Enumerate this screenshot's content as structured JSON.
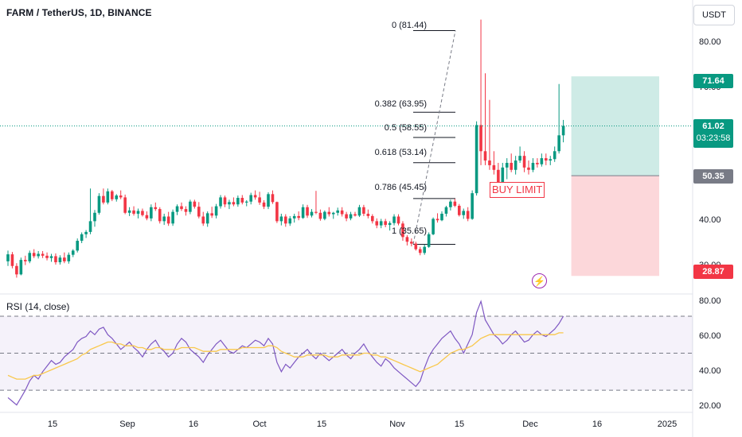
{
  "header": {
    "title": "FARM / TetherUS, 1D, BINANCE",
    "currency": "USDT"
  },
  "trade": {
    "buy_label": "BUY LIMIT",
    "take_profit": "71.64",
    "entry": "50.35",
    "stop": "28.87",
    "last_price": "61.02",
    "countdown": "03:23:58",
    "colors": {
      "profit": "#089981",
      "loss": "#f23645",
      "entry": "#787b86"
    }
  },
  "rsi_panel": {
    "title": "RSI (14, close)"
  },
  "chart_data": [
    {
      "type": "candlestick",
      "y_ticks": [
        "80.00",
        "70.00",
        "40.00",
        "30.00"
      ],
      "ylim": [
        25,
        88
      ],
      "x_ticks": [
        "15",
        "Sep",
        "16",
        "Oct",
        "15",
        "Nov",
        "15",
        "Dec",
        "16",
        "2025"
      ],
      "x_tick_days": [
        14,
        31,
        46,
        61,
        75,
        92,
        106,
        122,
        137,
        153
      ],
      "ohlc": [
        [
          0,
          32.0,
          34.3,
          31.0,
          33.5
        ],
        [
          1,
          33.5,
          34.0,
          30.5,
          31.0
        ],
        [
          2,
          31.0,
          31.6,
          28.5,
          29.2
        ],
        [
          3,
          29.2,
          32.8,
          29.0,
          32.3
        ],
        [
          4,
          32.3,
          33.2,
          31.2,
          32.0
        ],
        [
          5,
          32.0,
          34.3,
          31.6,
          33.8
        ],
        [
          6,
          33.8,
          34.6,
          32.7,
          33.1
        ],
        [
          7,
          33.1,
          34.2,
          32.6,
          33.6
        ],
        [
          8,
          33.6,
          34.2,
          32.7,
          33.2
        ],
        [
          9,
          33.2,
          33.9,
          32.2,
          32.7
        ],
        [
          10,
          32.7,
          33.6,
          31.9,
          33.1
        ],
        [
          11,
          33.1,
          33.7,
          31.3,
          31.8
        ],
        [
          12,
          31.8,
          33.3,
          31.3,
          32.8
        ],
        [
          13,
          32.8,
          33.9,
          31.6,
          32.0
        ],
        [
          14,
          32.0,
          33.9,
          31.5,
          33.4
        ],
        [
          15,
          33.4,
          34.6,
          32.9,
          34.3
        ],
        [
          16,
          34.3,
          36.9,
          33.9,
          36.4
        ],
        [
          17,
          36.4,
          38.2,
          35.9,
          37.8
        ],
        [
          18,
          37.8,
          38.7,
          37.0,
          38.3
        ],
        [
          19,
          38.3,
          47.6,
          37.8,
          40.6
        ],
        [
          20,
          40.6,
          43.0,
          39.4,
          42.4
        ],
        [
          21,
          42.4,
          46.6,
          42.0,
          46.0
        ],
        [
          22,
          46.0,
          47.6,
          44.2,
          44.6
        ],
        [
          23,
          44.6,
          47.6,
          44.2,
          47.0
        ],
        [
          24,
          47.0,
          47.3,
          44.9,
          45.3
        ],
        [
          25,
          45.3,
          46.4,
          44.8,
          46.1
        ],
        [
          26,
          46.1,
          47.2,
          45.3,
          45.7
        ],
        [
          27,
          45.7,
          46.3,
          42.1,
          42.4
        ],
        [
          28,
          42.4,
          43.6,
          41.7,
          42.9
        ],
        [
          29,
          42.9,
          43.8,
          41.8,
          42.2
        ],
        [
          30,
          42.2,
          43.3,
          41.2,
          42.8
        ],
        [
          31,
          42.8,
          43.3,
          41.6,
          41.9
        ],
        [
          32,
          41.9,
          42.7,
          40.8,
          41.2
        ],
        [
          33,
          41.2,
          44.2,
          40.6,
          43.6
        ],
        [
          34,
          43.6,
          44.6,
          42.8,
          43.2
        ],
        [
          35,
          43.2,
          43.6,
          40.1,
          40.6
        ],
        [
          36,
          40.6,
          42.2,
          39.8,
          41.6
        ],
        [
          37,
          41.6,
          42.6,
          39.6,
          40.1
        ],
        [
          38,
          40.1,
          43.1,
          39.6,
          42.6
        ],
        [
          39,
          42.6,
          44.2,
          41.9,
          43.8
        ],
        [
          40,
          43.8,
          44.6,
          42.8,
          43.2
        ],
        [
          41,
          43.2,
          43.8,
          41.8,
          42.6
        ],
        [
          42,
          42.6,
          45.2,
          42.1,
          44.8
        ],
        [
          43,
          44.8,
          45.2,
          43.3,
          43.7
        ],
        [
          44,
          43.7,
          44.7,
          41.2,
          41.6
        ],
        [
          45,
          41.6,
          42.6,
          39.6,
          40.1
        ],
        [
          46,
          40.1,
          42.7,
          39.4,
          42.3
        ],
        [
          47,
          42.3,
          43.7,
          41.3,
          41.8
        ],
        [
          48,
          41.8,
          44.3,
          41.2,
          43.8
        ],
        [
          49,
          43.8,
          46.2,
          43.3,
          45.7
        ],
        [
          50,
          45.7,
          46.1,
          43.6,
          44.2
        ],
        [
          51,
          44.2,
          45.2,
          43.2,
          44.7
        ],
        [
          52,
          44.7,
          45.7,
          43.8,
          44.2
        ],
        [
          53,
          44.2,
          46.1,
          43.7,
          45.6
        ],
        [
          54,
          45.6,
          46.2,
          44.2,
          44.6
        ],
        [
          55,
          44.6,
          45.1,
          43.8,
          44.8
        ],
        [
          56,
          44.8,
          46.7,
          44.2,
          46.2
        ],
        [
          57,
          46.2,
          47.2,
          45.2,
          45.7
        ],
        [
          58,
          45.7,
          46.9,
          44.1,
          44.6
        ],
        [
          59,
          44.6,
          45.1,
          43.2,
          43.7
        ],
        [
          60,
          43.7,
          46.8,
          43.2,
          46.4
        ],
        [
          61,
          46.4,
          47.2,
          44.3,
          44.7
        ],
        [
          62,
          44.7,
          44.8,
          40.2,
          40.6
        ],
        [
          63,
          40.6,
          42.2,
          39.7,
          41.6
        ],
        [
          64,
          41.6,
          42.1,
          39.4,
          40.1
        ],
        [
          65,
          40.1,
          41.7,
          39.6,
          41.2
        ],
        [
          66,
          41.2,
          42.2,
          40.3,
          41.7
        ],
        [
          67,
          41.7,
          42.7,
          40.8,
          41.3
        ],
        [
          68,
          41.3,
          44.2,
          41.1,
          43.6
        ],
        [
          69,
          43.6,
          44.1,
          41.3,
          41.8
        ],
        [
          70,
          41.8,
          43.2,
          41.4,
          42.6
        ],
        [
          71,
          42.6,
          47.1,
          42.1,
          42.4
        ],
        [
          72,
          42.4,
          43.1,
          40.7,
          41.1
        ],
        [
          73,
          41.1,
          42.9,
          40.8,
          42.6
        ],
        [
          74,
          42.6,
          43.6,
          41.6,
          42.1
        ],
        [
          75,
          42.1,
          42.6,
          41.1,
          42.4
        ],
        [
          76,
          42.4,
          43.5,
          41.8,
          42.9
        ],
        [
          77,
          42.9,
          43.6,
          41.6,
          42.1
        ],
        [
          78,
          42.1,
          42.6,
          40.6,
          41.2
        ],
        [
          79,
          41.2,
          42.6,
          40.8,
          42.1
        ],
        [
          80,
          42.1,
          42.6,
          41.6,
          41.8
        ],
        [
          81,
          41.8,
          44.1,
          41.5,
          43.6
        ],
        [
          82,
          43.6,
          44.1,
          41.7,
          42.2
        ],
        [
          83,
          42.2,
          43.1,
          41.2,
          41.7
        ],
        [
          84,
          41.7,
          42.1,
          40.1,
          40.6
        ],
        [
          85,
          40.6,
          41.2,
          39.1,
          39.7
        ],
        [
          86,
          39.7,
          41.1,
          39.1,
          40.6
        ],
        [
          87,
          40.6,
          41.1,
          39.3,
          39.8
        ],
        [
          88,
          39.8,
          40.6,
          38.6,
          40.2
        ],
        [
          89,
          40.2,
          42.1,
          39.7,
          41.6
        ],
        [
          90,
          41.6,
          42.1,
          39.7,
          40.1
        ],
        [
          91,
          40.1,
          40.6,
          36.4,
          37.2
        ],
        [
          92,
          37.2,
          37.6,
          35.4,
          36.2
        ],
        [
          93,
          36.2,
          36.9,
          35.2,
          35.8
        ],
        [
          94,
          35.8,
          36.2,
          34.3,
          34.6
        ],
        [
          95,
          34.6,
          35.1,
          33.3,
          33.8
        ],
        [
          96,
          33.8,
          35.6,
          33.4,
          35.1
        ],
        [
          97,
          35.1,
          38.2,
          34.9,
          37.8
        ],
        [
          98,
          37.8,
          41.4,
          37.6,
          41.1
        ],
        [
          99,
          41.1,
          42.3,
          40.3,
          40.8
        ],
        [
          100,
          40.8,
          42.7,
          40.6,
          42.2
        ],
        [
          101,
          42.2,
          43.9,
          41.6,
          43.6
        ],
        [
          102,
          43.6,
          45.2,
          42.9,
          44.8
        ],
        [
          103,
          44.8,
          45.4,
          43.6,
          43.9
        ],
        [
          104,
          43.9,
          44.3,
          41.6,
          41.9
        ],
        [
          105,
          41.9,
          43.3,
          41.1,
          42.8
        ],
        [
          106,
          42.8,
          43.6,
          40.6,
          41.1
        ],
        [
          107,
          41.1,
          47.2,
          40.9,
          46.6
        ],
        [
          108,
          46.6,
          62.0,
          46.1,
          61.2
        ],
        [
          109,
          61.2,
          83.8,
          52.6,
          55.6
        ],
        [
          110,
          55.6,
          72.3,
          52.6,
          53.6
        ],
        [
          111,
          53.6,
          66.6,
          51.6,
          52.6
        ],
        [
          112,
          52.6,
          55.6,
          50.6,
          51.6
        ],
        [
          113,
          51.6,
          53.1,
          47.6,
          48.6
        ],
        [
          114,
          48.6,
          53.1,
          48.1,
          52.1
        ],
        [
          115,
          52.1,
          54.1,
          49.6,
          53.1
        ],
        [
          116,
          53.1,
          55.1,
          51.1,
          51.6
        ],
        [
          117,
          51.6,
          54.6,
          50.6,
          53.6
        ],
        [
          118,
          53.6,
          56.6,
          53.1,
          54.6
        ],
        [
          119,
          54.6,
          55.6,
          51.1,
          52.1
        ],
        [
          120,
          52.1,
          53.6,
          50.6,
          51.6
        ],
        [
          121,
          51.6,
          54.1,
          51.1,
          53.1
        ],
        [
          122,
          53.1,
          54.1,
          52.1,
          52.8
        ],
        [
          123,
          52.8,
          55.1,
          52.3,
          54.1
        ],
        [
          124,
          54.1,
          55.1,
          52.6,
          53.6
        ],
        [
          125,
          53.6,
          54.6,
          52.6,
          53.9
        ],
        [
          126,
          53.9,
          56.6,
          53.3,
          55.6
        ],
        [
          127,
          55.6,
          70.0,
          55.1,
          59.0
        ],
        [
          128,
          59.0,
          62.3,
          57.5,
          61.02
        ]
      ]
    },
    {
      "type": "line",
      "name": "RSI",
      "ylim": [
        18,
        82
      ],
      "y_ticks": [
        "80.00",
        "60.00",
        "40.00",
        "20.00"
      ],
      "bands": [
        70,
        50,
        30
      ],
      "series": [
        {
          "color": "#7e57c2",
          "values": [
            26,
            24,
            22,
            26,
            30,
            35,
            38,
            36,
            40,
            43,
            46,
            44,
            45,
            48,
            50,
            52,
            56,
            58,
            59,
            62,
            60,
            63,
            64,
            60,
            58,
            55,
            52,
            54,
            56,
            53,
            51,
            48,
            52,
            55,
            57,
            53,
            51,
            48,
            50,
            55,
            58,
            56,
            52,
            50,
            48,
            45,
            49,
            52,
            55,
            57,
            54,
            51,
            50,
            52,
            54,
            53,
            55,
            57,
            56,
            54,
            58,
            55,
            45,
            40,
            44,
            42,
            45,
            48,
            50,
            52,
            49,
            47,
            50,
            48,
            46,
            48,
            50,
            52,
            49,
            47,
            50,
            52,
            55,
            51,
            48,
            45,
            43,
            47,
            45,
            42,
            40,
            38,
            36,
            34,
            32,
            35,
            42,
            48,
            52,
            55,
            58,
            60,
            62,
            58,
            55,
            50,
            55,
            60,
            72,
            78,
            68,
            64,
            60,
            58,
            55,
            57,
            60,
            62,
            59,
            56,
            57,
            60,
            62,
            60,
            59,
            61,
            63,
            66,
            70
          ]
        },
        {
          "color": "#f9c84b",
          "values": [
            38,
            37,
            36,
            36,
            36,
            37,
            38,
            38,
            39,
            40,
            41,
            42,
            43,
            44,
            45,
            46,
            47,
            49,
            50,
            52,
            53,
            54,
            55,
            56,
            56,
            55,
            55,
            54,
            54,
            54,
            53,
            53,
            52,
            52,
            53,
            53,
            52,
            52,
            52,
            52,
            53,
            53,
            53,
            53,
            52,
            51,
            51,
            51,
            51,
            52,
            52,
            52,
            52,
            52,
            53,
            53,
            53,
            53,
            53,
            53,
            54,
            54,
            53,
            51,
            50,
            49,
            48,
            48,
            48,
            49,
            49,
            49,
            49,
            49,
            48,
            48,
            48,
            49,
            49,
            49,
            49,
            49,
            50,
            50,
            49,
            49,
            48,
            48,
            47,
            46,
            45,
            44,
            43,
            42,
            41,
            40,
            41,
            42,
            43,
            44,
            46,
            48,
            50,
            51,
            52,
            52,
            53,
            54,
            56,
            58,
            59,
            60,
            60,
            60,
            60,
            60,
            60,
            60,
            60,
            60,
            60,
            60,
            60,
            60,
            60,
            60,
            60,
            61,
            61
          ]
        }
      ]
    }
  ],
  "fib_levels": [
    {
      "label": "0 (81.44)",
      "value": 81.44
    },
    {
      "label": "0.382 (63.95)",
      "value": 63.95
    },
    {
      "label": "0.5 (58.55)",
      "value": 58.55
    },
    {
      "label": "0.618 (53.14)",
      "value": 53.14
    },
    {
      "label": "0.786 (45.45)",
      "value": 45.45
    },
    {
      "label": "1 (35.65)",
      "value": 35.65
    }
  ]
}
